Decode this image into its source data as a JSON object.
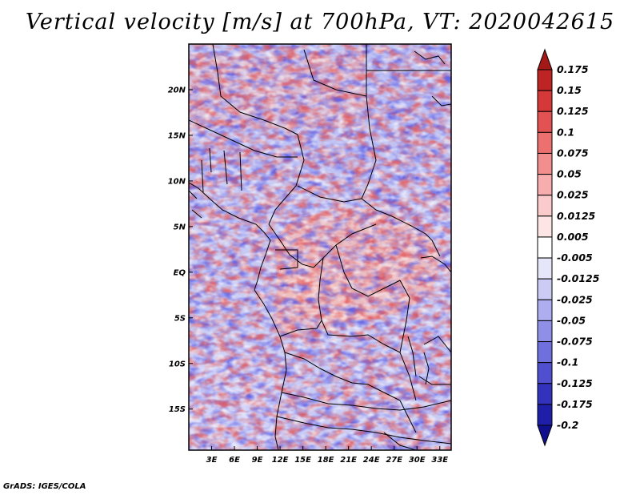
{
  "chart_data": {
    "type": "heatmap",
    "title": "Vertical velocity [m/s] at 700hPa, VT: 2020042615",
    "variable": "Vertical velocity",
    "units": "m/s",
    "level": "700hPa",
    "valid_time": "2020042615",
    "x_ticks": [
      "3E",
      "6E",
      "9E",
      "12E",
      "15E",
      "18E",
      "21E",
      "24E",
      "27E",
      "30E",
      "33E"
    ],
    "x_tick_values": [
      3,
      6,
      9,
      12,
      15,
      18,
      21,
      24,
      27,
      30,
      33
    ],
    "y_ticks": [
      "20N",
      "15N",
      "10N",
      "5N",
      "EQ",
      "5S",
      "10S",
      "15S"
    ],
    "y_tick_values": [
      20,
      15,
      10,
      5,
      0,
      -5,
      -10,
      -15
    ],
    "xlim": [
      0,
      34.5
    ],
    "ylim": [
      -19.5,
      25
    ],
    "colorbar": {
      "labels": [
        "0.175",
        "0.15",
        "0.125",
        "0.1",
        "0.075",
        "0.05",
        "0.025",
        "0.0125",
        "0.005",
        "-0.005",
        "-0.0125",
        "-0.025",
        "-0.05",
        "-0.075",
        "-0.1",
        "-0.125",
        "-0.175",
        "-0.2"
      ],
      "colors": [
        "#a41818",
        "#be2424",
        "#d43838",
        "#e25252",
        "#ec7070",
        "#f38e8e",
        "#f7adad",
        "#fbcaca",
        "#fde5e5",
        "#ffffff",
        "#e6e6fb",
        "#cbcbf6",
        "#adadf0",
        "#8f8fe8",
        "#6f6fdd",
        "#4f4fcf",
        "#3232bd",
        "#1e1ea8",
        "#10108e"
      ]
    }
  },
  "footer": "GrADS: IGES/COLA"
}
